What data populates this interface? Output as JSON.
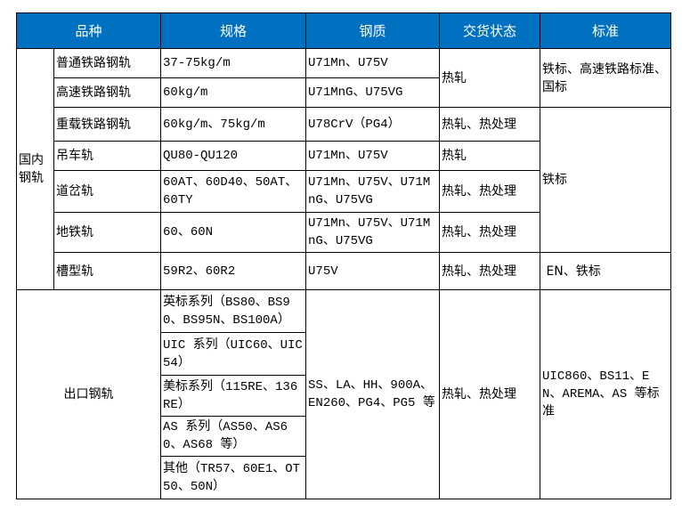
{
  "header": {
    "variety": "品种",
    "spec": "规格",
    "steel": "钢质",
    "delivery": "交货状态",
    "standard": "标准"
  },
  "domestic": {
    "label": "国内钢轨",
    "rows": [
      {
        "variety": "普通铁路钢轨",
        "spec": "37-75kg/m",
        "steel": "U71Mn、U75V"
      },
      {
        "variety": "高速铁路钢轨",
        "spec": "60kg/m",
        "steel": "U71MnG、U75VG"
      },
      {
        "variety": "重载铁路钢轨",
        "spec": "60kg/m、75kg/m",
        "steel": "U78CrV（PG4）",
        "delivery": "热轧、热处理"
      },
      {
        "variety": "吊车轨",
        "spec": "QU80-QU120",
        "steel": "U71Mn、U75V",
        "delivery": "热轧"
      },
      {
        "variety": "道岔轨",
        "spec": "60AT、60D40、50AT、60TY",
        "steel": "U71Mn、U75V、U71MnG、U75VG",
        "delivery": "热轧、热处理"
      },
      {
        "variety": "地铁轨",
        "spec": "60、60N",
        "steel": "U71Mn、U75V、U71MnG、U75VG",
        "delivery": "热轧、热处理"
      },
      {
        "variety": "槽型轨",
        "spec": "59R2、60R2",
        "steel": "U75V",
        "delivery": "热轧、热处理",
        "standard": " EN、铁标"
      }
    ],
    "delivery_rows_1_2": "热轧",
    "standard_rows_1_2": "铁标、高速铁路标准、国标",
    "standard_rows_3_6": "铁标"
  },
  "export": {
    "label": "出口钢轨",
    "specs": [
      "英标系列（BS80、BS90、BS95N、BS100A）",
      "UIC 系列（UIC60、UIC54）",
      "美标系列（115RE、136RE）",
      "AS 系列（AS50、AS60、AS68 等）",
      "其他（TR57、60E1、OT50、50N）"
    ],
    "steel": "SS、LA、HH、900A、EN260、PG4、PG5 等",
    "delivery": "热轧、热处理",
    "standard": "UIC860、BS11、EN、AREMA、AS 等标准"
  },
  "colors": {
    "header_bg": "#0070C0",
    "header_text": "#FFFFFF"
  }
}
